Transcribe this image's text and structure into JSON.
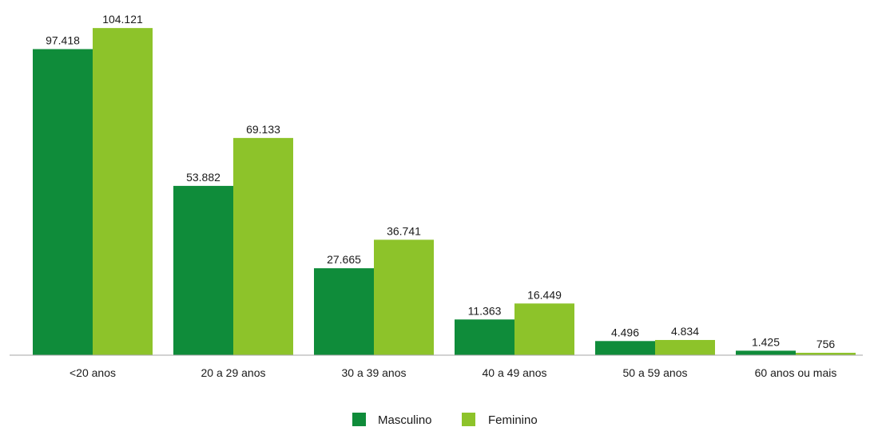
{
  "chart_data": {
    "type": "bar",
    "categories": [
      "<20 anos",
      "20 a 29 anos",
      "30 a 39 anos",
      "40 a 49 anos",
      "50 a 59 anos",
      "60 anos ou mais"
    ],
    "series": [
      {
        "name": "Masculino",
        "color": "#0f8c3a",
        "values": [
          97418,
          53882,
          27665,
          11363,
          4496,
          1425
        ],
        "labels": [
          "97.418",
          "53.882",
          "27.665",
          "11.363",
          "4.496",
          "1.425"
        ]
      },
      {
        "name": "Feminino",
        "color": "#8dc32a",
        "values": [
          104121,
          69133,
          36741,
          16449,
          4834,
          756
        ],
        "labels": [
          "104.121",
          "69.133",
          "36.741",
          "16.449",
          "4.834",
          "756"
        ]
      }
    ],
    "ylim": [
      0,
      110000
    ],
    "grid": false,
    "legend": "bottom-center",
    "axis_color": "#a6a6a6"
  }
}
